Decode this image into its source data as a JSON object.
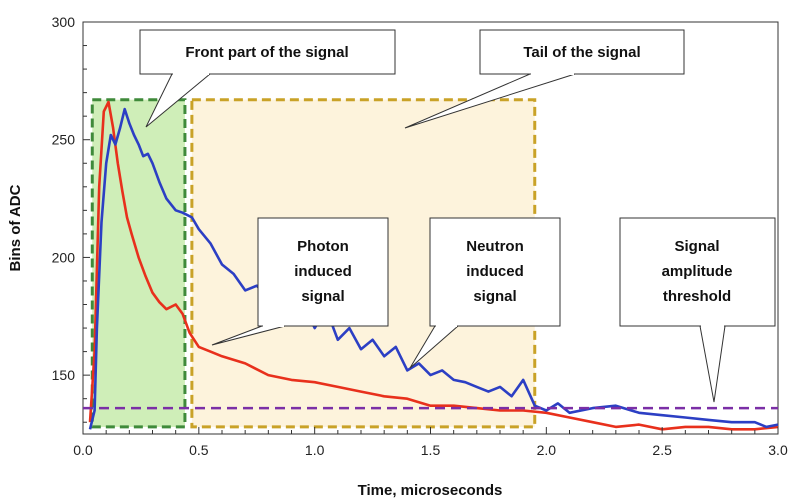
{
  "chart_data": {
    "type": "line",
    "title": "",
    "xlabel": "Time, microseconds",
    "ylabel": "Bins of ADC",
    "xlim": [
      0.0,
      3.0
    ],
    "ylim": [
      125,
      300
    ],
    "x_ticks": [
      0.0,
      0.5,
      1.0,
      1.5,
      2.0,
      2.5,
      3.0
    ],
    "x_tick_labels": [
      "0.0",
      "0.5",
      "1.0",
      "1.5",
      "2.0",
      "2.5",
      "3.0"
    ],
    "y_ticks": [
      150,
      200,
      250,
      300
    ],
    "y_tick_labels": [
      "150",
      "200",
      "250",
      "300"
    ],
    "grid": false,
    "threshold": {
      "name": "Signal amplitude threshold",
      "value": 136,
      "color": "#7b2fa6"
    },
    "series": [
      {
        "name": "Neutron induced signal",
        "color": "#2c3fc4",
        "x": [
          0.03,
          0.05,
          0.06,
          0.08,
          0.1,
          0.12,
          0.14,
          0.16,
          0.18,
          0.2,
          0.22,
          0.24,
          0.26,
          0.28,
          0.3,
          0.33,
          0.36,
          0.4,
          0.43,
          0.47,
          0.5,
          0.55,
          0.6,
          0.65,
          0.7,
          0.75,
          0.8,
          0.85,
          0.9,
          0.95,
          1.0,
          1.05,
          1.1,
          1.15,
          1.2,
          1.25,
          1.3,
          1.35,
          1.4,
          1.45,
          1.5,
          1.55,
          1.6,
          1.65,
          1.7,
          1.75,
          1.8,
          1.85,
          1.9,
          1.95,
          2.0,
          2.05,
          2.1,
          2.2,
          2.3,
          2.4,
          2.5,
          2.6,
          2.7,
          2.8,
          2.9,
          2.95,
          3.0
        ],
        "values": [
          127,
          135,
          170,
          215,
          240,
          252,
          248,
          255,
          263,
          257,
          252,
          248,
          243,
          244,
          240,
          232,
          225,
          220,
          219,
          217,
          212,
          206,
          197,
          193,
          186,
          188,
          183,
          185,
          176,
          180,
          170,
          178,
          165,
          170,
          161,
          165,
          158,
          162,
          152,
          155,
          150,
          152,
          148,
          147,
          145,
          143,
          145,
          141,
          148,
          137,
          135,
          138,
          134,
          136,
          137,
          134,
          133,
          132,
          131,
          130,
          130,
          128,
          129
        ]
      },
      {
        "name": "Photon induced signal",
        "color": "#e8301c",
        "x": [
          0.03,
          0.05,
          0.07,
          0.09,
          0.11,
          0.13,
          0.15,
          0.17,
          0.19,
          0.21,
          0.24,
          0.27,
          0.3,
          0.33,
          0.36,
          0.4,
          0.43,
          0.46,
          0.5,
          0.55,
          0.6,
          0.7,
          0.8,
          0.9,
          1.0,
          1.1,
          1.2,
          1.3,
          1.4,
          1.5,
          1.6,
          1.7,
          1.8,
          1.9,
          2.0,
          2.1,
          2.2,
          2.3,
          2.4,
          2.5,
          2.6,
          2.7,
          2.8,
          2.9,
          3.0
        ],
        "values": [
          130,
          160,
          230,
          262,
          266,
          255,
          240,
          228,
          217,
          210,
          200,
          192,
          185,
          181,
          178,
          180,
          176,
          168,
          162,
          160,
          158,
          155,
          150,
          148,
          147,
          145,
          143,
          141,
          140,
          137,
          137,
          136,
          135,
          135,
          134,
          132,
          130,
          128,
          129,
          127,
          128,
          128,
          127,
          127,
          128
        ]
      }
    ],
    "regions": [
      {
        "name": "Front part of the signal",
        "x": [
          0.04,
          0.44
        ],
        "y": [
          128,
          267
        ],
        "fill": "#cfeeb8",
        "stroke": "#3f8a3a"
      },
      {
        "name": "Tail of the signal",
        "x": [
          0.47,
          1.95
        ],
        "y": [
          128,
          267
        ],
        "fill": "#fdf3dc",
        "stroke": "#c9a227"
      }
    ]
  },
  "callouts": {
    "front": "Front part of the signal",
    "tail": "Tail of the signal",
    "photon": [
      "Photon",
      "induced",
      "signal"
    ],
    "neutron": [
      "Neutron",
      "induced",
      "signal"
    ],
    "threshold": [
      "Signal",
      "amplitude",
      "threshold"
    ]
  }
}
